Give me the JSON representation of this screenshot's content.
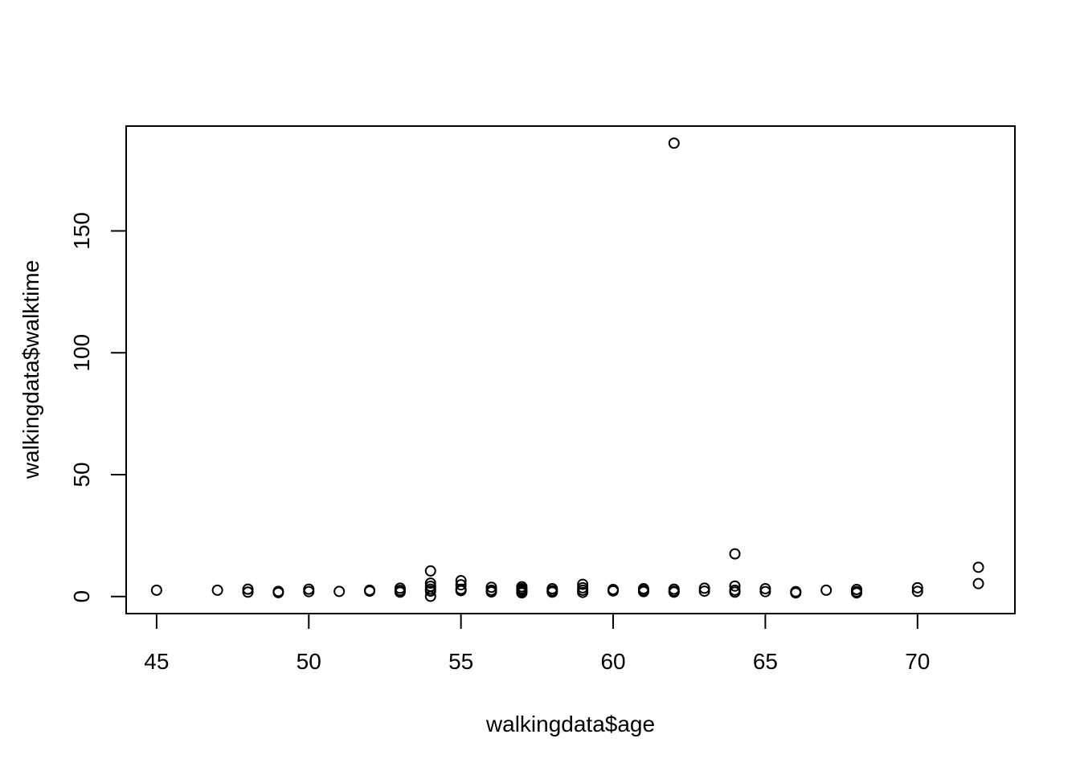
{
  "chart_data": {
    "type": "scatter",
    "title": "",
    "xlabel": "walkingdata$age",
    "ylabel": "walkingdata$walktime",
    "xlim": [
      44,
      73.2
    ],
    "ylim": [
      -7,
      193
    ],
    "xticks": [
      45,
      50,
      55,
      60,
      65,
      70
    ],
    "yticks": [
      0,
      50,
      100,
      150
    ],
    "marker": "open-circle",
    "grid": false,
    "legend": "none",
    "points": [
      {
        "x": 45,
        "y": 2.6
      },
      {
        "x": 47,
        "y": 2.6
      },
      {
        "x": 48,
        "y": 3.0
      },
      {
        "x": 48,
        "y": 1.8
      },
      {
        "x": 49,
        "y": 2.1
      },
      {
        "x": 49,
        "y": 1.6
      },
      {
        "x": 50,
        "y": 3.0
      },
      {
        "x": 50,
        "y": 2.0
      },
      {
        "x": 51,
        "y": 2.1
      },
      {
        "x": 52,
        "y": 2.6
      },
      {
        "x": 52,
        "y": 2.2
      },
      {
        "x": 53,
        "y": 3.4
      },
      {
        "x": 53,
        "y": 2.5
      },
      {
        "x": 53,
        "y": 1.8
      },
      {
        "x": 54,
        "y": 10.5
      },
      {
        "x": 54,
        "y": 5.5
      },
      {
        "x": 54,
        "y": 4.2
      },
      {
        "x": 54,
        "y": 3.0
      },
      {
        "x": 54,
        "y": 2.2
      },
      {
        "x": 54,
        "y": 0.1
      },
      {
        "x": 55,
        "y": 6.5
      },
      {
        "x": 55,
        "y": 4.8
      },
      {
        "x": 55,
        "y": 3.0
      },
      {
        "x": 55,
        "y": 2.4
      },
      {
        "x": 56,
        "y": 3.8
      },
      {
        "x": 56,
        "y": 2.6
      },
      {
        "x": 56,
        "y": 1.9
      },
      {
        "x": 57,
        "y": 4.0
      },
      {
        "x": 57,
        "y": 3.2
      },
      {
        "x": 57,
        "y": 2.6
      },
      {
        "x": 57,
        "y": 2.0
      },
      {
        "x": 57,
        "y": 1.5
      },
      {
        "x": 58,
        "y": 3.2
      },
      {
        "x": 58,
        "y": 2.4
      },
      {
        "x": 58,
        "y": 1.8
      },
      {
        "x": 59,
        "y": 5.0
      },
      {
        "x": 59,
        "y": 3.6
      },
      {
        "x": 59,
        "y": 2.6
      },
      {
        "x": 59,
        "y": 1.7
      },
      {
        "x": 60,
        "y": 2.9
      },
      {
        "x": 60,
        "y": 2.3
      },
      {
        "x": 61,
        "y": 3.2
      },
      {
        "x": 61,
        "y": 2.5
      },
      {
        "x": 61,
        "y": 2.0
      },
      {
        "x": 62,
        "y": 186
      },
      {
        "x": 62,
        "y": 3.0
      },
      {
        "x": 62,
        "y": 2.2
      },
      {
        "x": 62,
        "y": 1.8
      },
      {
        "x": 63,
        "y": 3.4
      },
      {
        "x": 63,
        "y": 2.2
      },
      {
        "x": 64,
        "y": 17.5
      },
      {
        "x": 64,
        "y": 4.3
      },
      {
        "x": 64,
        "y": 2.6
      },
      {
        "x": 64,
        "y": 1.8
      },
      {
        "x": 65,
        "y": 3.2
      },
      {
        "x": 65,
        "y": 2.0
      },
      {
        "x": 66,
        "y": 2.0
      },
      {
        "x": 66,
        "y": 1.5
      },
      {
        "x": 67,
        "y": 2.6
      },
      {
        "x": 68,
        "y": 2.9
      },
      {
        "x": 68,
        "y": 2.0
      },
      {
        "x": 68,
        "y": 1.5
      },
      {
        "x": 70,
        "y": 3.6
      },
      {
        "x": 70,
        "y": 2.1
      },
      {
        "x": 72,
        "y": 12.0
      },
      {
        "x": 72,
        "y": 5.3
      }
    ]
  }
}
